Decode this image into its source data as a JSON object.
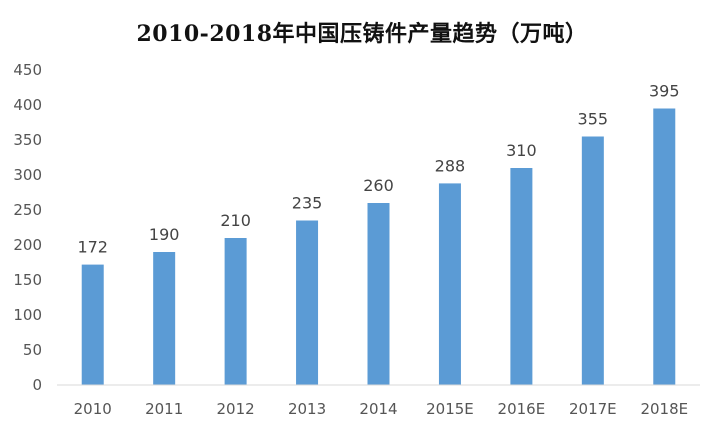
{
  "chart_data": {
    "type": "bar",
    "title": "2010-2018年中国压铸件产量趋势（万吨）",
    "categories": [
      "2010",
      "2011",
      "2012",
      "2013",
      "2014",
      "2015E",
      "2016E",
      "2017E",
      "2018E"
    ],
    "values": [
      172,
      190,
      210,
      235,
      260,
      288,
      310,
      355,
      395
    ],
    "xlabel": "",
    "ylabel": "",
    "ylim": [
      0,
      450
    ],
    "yticks": [
      0,
      50,
      100,
      150,
      200,
      250,
      300,
      350,
      400,
      450
    ],
    "grid": false,
    "legend": "none",
    "bar_color": "#5b9bd5",
    "axis_color": "#d9d9d9"
  }
}
